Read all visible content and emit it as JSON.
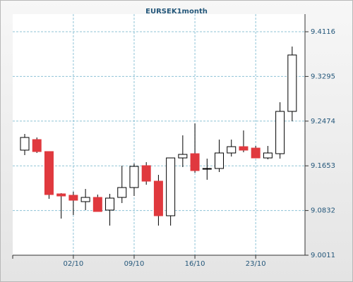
{
  "chart_data": {
    "type": "candlestick",
    "title": "EURSEK1month",
    "categories": [
      null,
      null,
      null,
      null,
      "02/10",
      null,
      null,
      null,
      null,
      "09/10",
      null,
      null,
      null,
      null,
      "16/10",
      null,
      null,
      null,
      null,
      "23/10",
      null,
      null,
      null
    ],
    "open": [
      9.1941,
      9.2135,
      9.1915,
      9.1138,
      9.1112,
      9.0995,
      9.1073,
      9.084,
      9.1073,
      9.1254,
      9.1656,
      9.1371,
      9.0736,
      9.1798,
      9.1876,
      9.1591,
      9.1604,
      9.1889,
      9.2005,
      9.1979,
      9.1798,
      9.1876,
      9.2653
    ],
    "high": [
      9.2238,
      9.2174,
      9.1915,
      9.1151,
      9.1177,
      9.1228,
      9.1125,
      9.1138,
      9.1656,
      9.1695,
      9.172,
      9.1487,
      9.1798,
      9.2213,
      9.2433,
      9.1785,
      9.2135,
      9.2135,
      9.2303,
      9.2018,
      9.2018,
      9.2821,
      9.3844
    ],
    "low": [
      9.185,
      9.1889,
      9.1047,
      9.0684,
      9.0749,
      9.084,
      9.0814,
      9.0555,
      9.0969,
      9.1099,
      9.1306,
      9.0555,
      9.0555,
      9.163,
      9.1526,
      9.1397,
      9.1539,
      9.1824,
      9.1902,
      9.1798,
      9.1772,
      9.1785,
      9.2472
    ],
    "close": [
      9.2174,
      9.1915,
      9.1125,
      9.1099,
      9.1021,
      9.1073,
      9.0814,
      9.106,
      9.1254,
      9.1643,
      9.1371,
      9.0736,
      9.1798,
      9.1863,
      9.1565,
      9.1604,
      9.1889,
      9.2005,
      9.1941,
      9.1798,
      9.1889,
      9.2653,
      9.3689
    ],
    "up_color": "#ffffff",
    "down_color": "#e0393e",
    "ylim": [
      9.0011,
      9.444
    ],
    "yticks": [
      9.0011,
      9.0832,
      9.1653,
      9.2474,
      9.3295,
      9.4116
    ],
    "grid": true
  }
}
